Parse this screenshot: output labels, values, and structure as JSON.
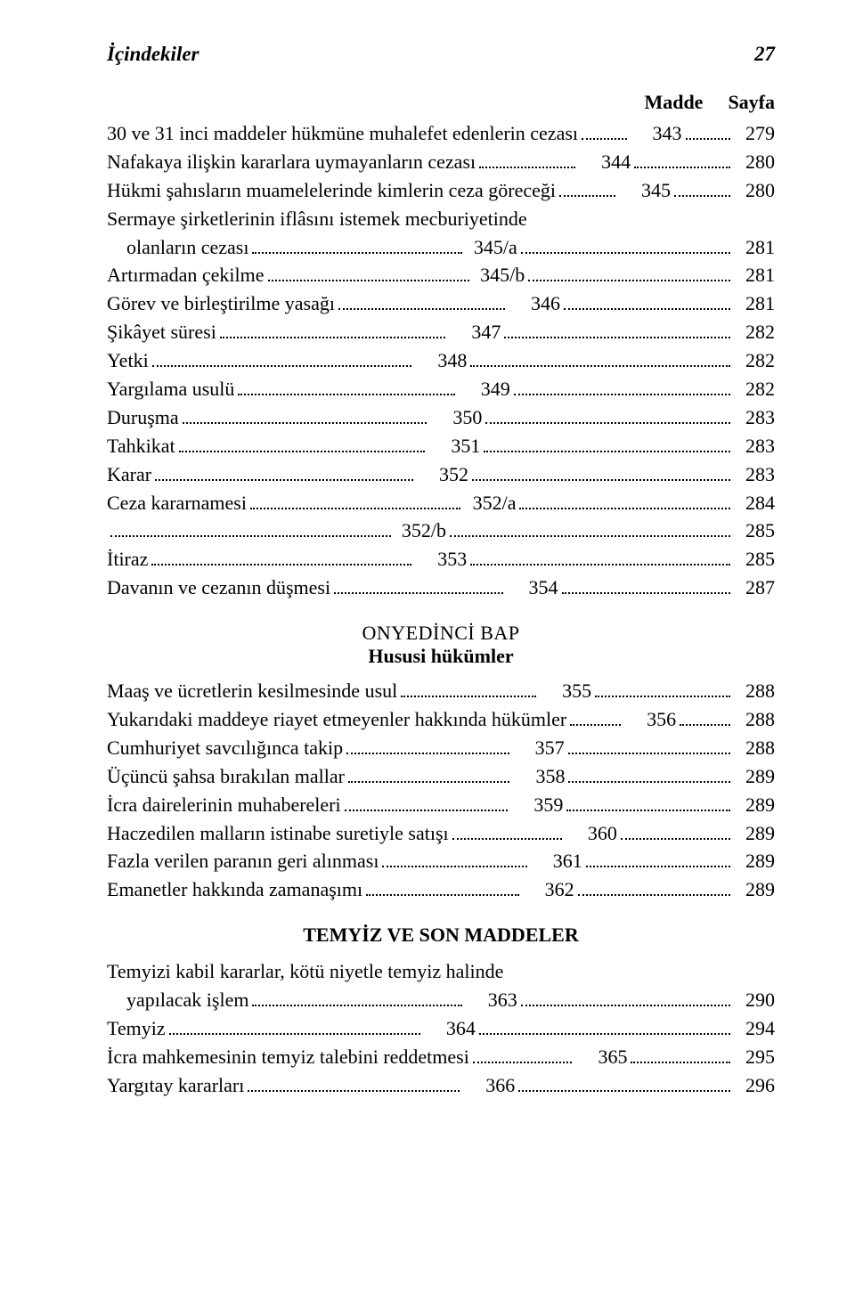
{
  "header": {
    "title": "İçindekiler",
    "page": "27"
  },
  "columns": {
    "madde": "Madde",
    "sayfa": "Sayfa"
  },
  "sections": [
    {
      "entries": [
        {
          "title": "30 ve 31 inci maddeler hükmüne muhalefet edenlerin cezası",
          "madde": "343",
          "sayfa": "279"
        },
        {
          "title": "Nafakaya ilişkin kararlara uymayanların cezası",
          "madde": "344",
          "sayfa": "280"
        },
        {
          "title": "Hükmi şahısların muamelelerinde kimlerin ceza göreceği",
          "madde": "345",
          "sayfa": "280"
        },
        {
          "title": "Sermaye şirketlerinin iflâsını istemek mecburiyetinde",
          "cont": true
        },
        {
          "title": "olanların cezası",
          "madde": "345/a",
          "sayfa": "281",
          "isCont": true
        },
        {
          "title": "Artırmadan çekilme",
          "madde": "345/b",
          "sayfa": "281"
        },
        {
          "title": "Görev ve birleştirilme yasağı",
          "madde": "346",
          "sayfa": "281"
        },
        {
          "title": "Şikâyet süresi",
          "madde": "347",
          "sayfa": "282"
        },
        {
          "title": "Yetki",
          "madde": "348",
          "sayfa": "282"
        },
        {
          "title": "Yargılama usulü",
          "madde": "349",
          "sayfa": "282"
        },
        {
          "title": "Duruşma",
          "madde": "350",
          "sayfa": "283"
        },
        {
          "title": "Tahkikat",
          "madde": "351",
          "sayfa": "283"
        },
        {
          "title": "Karar",
          "madde": "352",
          "sayfa": "283"
        },
        {
          "title": "Ceza kararnamesi",
          "madde": "352/a",
          "sayfa": "284"
        },
        {
          "title": "",
          "madde": "352/b",
          "sayfa": "285"
        },
        {
          "title": "İtiraz",
          "madde": "353",
          "sayfa": "285"
        },
        {
          "title": "Davanın ve cezanın düşmesi",
          "madde": "354",
          "sayfa": "287"
        }
      ]
    },
    {
      "heading": {
        "line1": "ONYEDİNCİ BAP",
        "line2": "Hususi hükümler"
      },
      "entries": [
        {
          "title": "Maaş ve ücretlerin kesilmesinde usul",
          "madde": "355",
          "sayfa": "288"
        },
        {
          "title": "Yukarıdaki maddeye riayet etmeyenler hakkında hükümler",
          "madde": "356",
          "sayfa": "288"
        },
        {
          "title": "Cumhuriyet savcılığınca takip",
          "madde": "357",
          "sayfa": "288"
        },
        {
          "title": "Üçüncü şahsa bırakılan mallar",
          "madde": "358",
          "sayfa": "289"
        },
        {
          "title": "İcra dairelerinin muhabereleri",
          "madde": "359",
          "sayfa": "289"
        },
        {
          "title": "Haczedilen malların istinabe suretiyle satışı",
          "madde": "360",
          "sayfa": "289"
        },
        {
          "title": "Fazla verilen paranın geri alınması",
          "madde": "361",
          "sayfa": "289"
        },
        {
          "title": "Emanetler hakkında zamanaşımı",
          "madde": "362",
          "sayfa": "289"
        }
      ]
    },
    {
      "headingBold": "TEMYİZ VE SON MADDELER",
      "entries": [
        {
          "title": "Temyizi kabil kararlar, kötü niyetle temyiz halinde",
          "cont": true
        },
        {
          "title": "yapılacak işlem",
          "madde": "363",
          "sayfa": "290",
          "isCont": true
        },
        {
          "title": "Temyiz",
          "madde": "364",
          "sayfa": "294"
        },
        {
          "title": "İcra mahkemesinin temyiz talebini reddetmesi",
          "madde": "365",
          "sayfa": "295"
        },
        {
          "title": "Yargıtay kararları",
          "madde": "366",
          "sayfa": "296"
        }
      ]
    }
  ]
}
